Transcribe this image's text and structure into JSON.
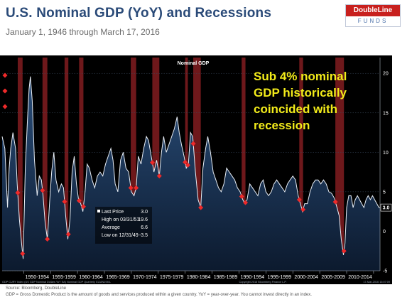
{
  "header": {
    "title": "U.S. Nominal GDP (YoY) and Recessions",
    "subtitle": "January 1, 1946 through March 17, 2016",
    "logo_top": "DoubleLine",
    "logo_bottom": "FUNDS"
  },
  "chart_data": {
    "type": "line",
    "panel_label": "Nominal GDP",
    "annotation": [
      "Sub 4% nominal",
      "GDP historically",
      "coincided with",
      "recession"
    ],
    "ylim": [
      -5,
      22
    ],
    "yticks": [
      -5,
      0,
      5,
      10,
      15,
      20
    ],
    "xlim": [
      1946.0,
      2016.2
    ],
    "x_tick_labels": [
      "1950-1954",
      "1955-1959",
      "1960-1964",
      "1965-1969",
      "1970-1974",
      "1975-1979",
      "1980-1984",
      "1985-1989",
      "1990-1994",
      "1995-1999",
      "2000-2004",
      "2005-2009",
      "2010-2014"
    ],
    "last_value_label": "3.0",
    "stats": {
      "last_price_label": "Last Price",
      "last_price": "3.0",
      "high_label": "High on 03/31/51",
      "high": "19.6",
      "average_label": "Average",
      "average": "6.6",
      "low_label": "Low on 12/31/49",
      "low": "-3.5"
    },
    "recessions": [
      [
        1948.9,
        1949.8
      ],
      [
        1953.5,
        1954.4
      ],
      [
        1957.6,
        1958.3
      ],
      [
        1960.3,
        1961.1
      ],
      [
        1969.9,
        1970.9
      ],
      [
        1973.9,
        1975.2
      ],
      [
        1980.0,
        1980.5
      ],
      [
        1981.5,
        1982.9
      ],
      [
        1990.5,
        1991.2
      ],
      [
        2001.2,
        2001.9
      ],
      [
        2007.9,
        2009.5
      ]
    ],
    "series": [
      {
        "x": [
          1946.0,
          1946.5,
          1947.0,
          1947.3,
          1947.6,
          1948.0,
          1948.5,
          1948.8,
          1949.2,
          1949.6,
          1949.9,
          1950.3,
          1950.7,
          1951.0,
          1951.25,
          1951.6,
          1952.0,
          1952.5,
          1952.9,
          1953.3,
          1953.6,
          1954.0,
          1954.4,
          1954.8,
          1955.2,
          1955.6,
          1956.0,
          1956.5,
          1957.0,
          1957.4,
          1957.8,
          1958.2,
          1958.6,
          1959.0,
          1959.4,
          1959.8,
          1960.2,
          1960.6,
          1961.0,
          1961.4,
          1961.8,
          1962.2,
          1962.7,
          1963.2,
          1963.7,
          1964.2,
          1964.7,
          1965.2,
          1965.7,
          1966.2,
          1966.6,
          1967.0,
          1967.5,
          1968.0,
          1968.5,
          1969.0,
          1969.5,
          1970.0,
          1970.5,
          1970.9,
          1971.3,
          1971.8,
          1972.3,
          1972.8,
          1973.2,
          1973.7,
          1974.2,
          1974.7,
          1975.2,
          1975.6,
          1976.0,
          1976.5,
          1977.0,
          1977.5,
          1978.0,
          1978.5,
          1978.9,
          1979.3,
          1979.8,
          1980.2,
          1980.6,
          1981.0,
          1981.4,
          1981.9,
          1982.4,
          1982.9,
          1983.3,
          1983.8,
          1984.2,
          1984.7,
          1985.2,
          1985.7,
          1986.2,
          1986.7,
          1987.2,
          1987.7,
          1988.2,
          1988.7,
          1989.2,
          1989.7,
          1990.2,
          1990.7,
          1991.1,
          1991.5,
          1992.0,
          1992.5,
          1993.0,
          1993.5,
          1994.0,
          1994.5,
          1995.0,
          1995.5,
          1996.0,
          1996.5,
          1997.0,
          1997.5,
          1998.0,
          1998.5,
          1999.0,
          1999.5,
          2000.0,
          2000.5,
          2001.0,
          2001.4,
          2001.8,
          2002.2,
          2002.7,
          2003.2,
          2003.7,
          2004.2,
          2004.7,
          2005.2,
          2005.7,
          2006.2,
          2006.7,
          2007.2,
          2007.7,
          2008.2,
          2008.6,
          2009.0,
          2009.4,
          2009.7,
          2010.0,
          2010.4,
          2010.8,
          2011.2,
          2011.6,
          2012.0,
          2012.4,
          2012.8,
          2013.2,
          2013.6,
          2014.0,
          2014.4,
          2014.8,
          2015.2,
          2015.6,
          2016.0,
          2016.2
        ],
        "y": [
          12.0,
          10.5,
          3.0,
          8.0,
          10.5,
          12.5,
          10.5,
          6.0,
          1.5,
          -1.5,
          -3.5,
          8.0,
          14.0,
          18.0,
          19.6,
          16.5,
          9.0,
          4.5,
          7.0,
          6.5,
          4.5,
          1.0,
          -1.0,
          3.5,
          7.5,
          10.0,
          6.5,
          5.0,
          6.0,
          5.5,
          2.0,
          -1.0,
          1.5,
          7.5,
          9.5,
          6.0,
          4.0,
          3.5,
          2.5,
          5.0,
          8.5,
          8.0,
          6.5,
          5.5,
          7.0,
          7.5,
          7.0,
          8.5,
          9.5,
          10.5,
          9.0,
          6.0,
          5.0,
          9.0,
          10.0,
          8.0,
          7.5,
          5.0,
          4.5,
          5.5,
          9.5,
          8.5,
          10.5,
          12.0,
          11.5,
          9.5,
          7.5,
          9.0,
          7.0,
          10.0,
          12.0,
          10.0,
          11.0,
          12.0,
          13.0,
          14.5,
          12.5,
          11.0,
          9.5,
          8.0,
          8.5,
          12.5,
          12.0,
          7.5,
          4.0,
          3.0,
          8.0,
          10.5,
          12.0,
          10.0,
          7.5,
          6.5,
          5.5,
          5.0,
          6.0,
          8.0,
          7.5,
          7.0,
          6.5,
          5.5,
          5.0,
          4.0,
          3.5,
          4.0,
          6.0,
          5.5,
          5.0,
          4.5,
          6.0,
          6.5,
          5.0,
          4.5,
          5.0,
          6.0,
          6.5,
          6.0,
          5.5,
          5.0,
          6.0,
          6.5,
          7.0,
          6.5,
          4.5,
          3.5,
          2.5,
          3.5,
          3.5,
          5.0,
          6.0,
          6.5,
          6.5,
          6.0,
          6.5,
          6.0,
          5.0,
          4.8,
          4.2,
          3.0,
          2.0,
          -1.0,
          -3.0,
          -1.5,
          3.0,
          4.5,
          4.5,
          3.0,
          4.0,
          4.5,
          4.0,
          3.5,
          3.0,
          4.0,
          4.5,
          4.0,
          4.5,
          4.0,
          3.5,
          3.0,
          3.0
        ]
      }
    ],
    "x_axis_info": "GDP CURY Index (US GDP Nominal Dollars YoY SA) Nominal GDP Quarterly 01JAN1946-",
    "copyright": "Copyright 2016 Bloomberg Finance L.P.",
    "timestamp": "17-Mar-2016 16:07:09"
  },
  "footer": {
    "source": "Source: Bloomberg, DoubleLine",
    "definition": "GDP = Gross Domestic Product is the amount of goods and services produced within a given country. YoY = year-over-year. You cannot invest directly in an index."
  },
  "colors": {
    "panel_bg": "#000000",
    "area_top": "#1d3c63",
    "line": "#e8eef6",
    "recession": "#8a1e22",
    "marker": "#ef2a2a",
    "annotation": "#f3ec1a",
    "title": "#2a4a78"
  }
}
